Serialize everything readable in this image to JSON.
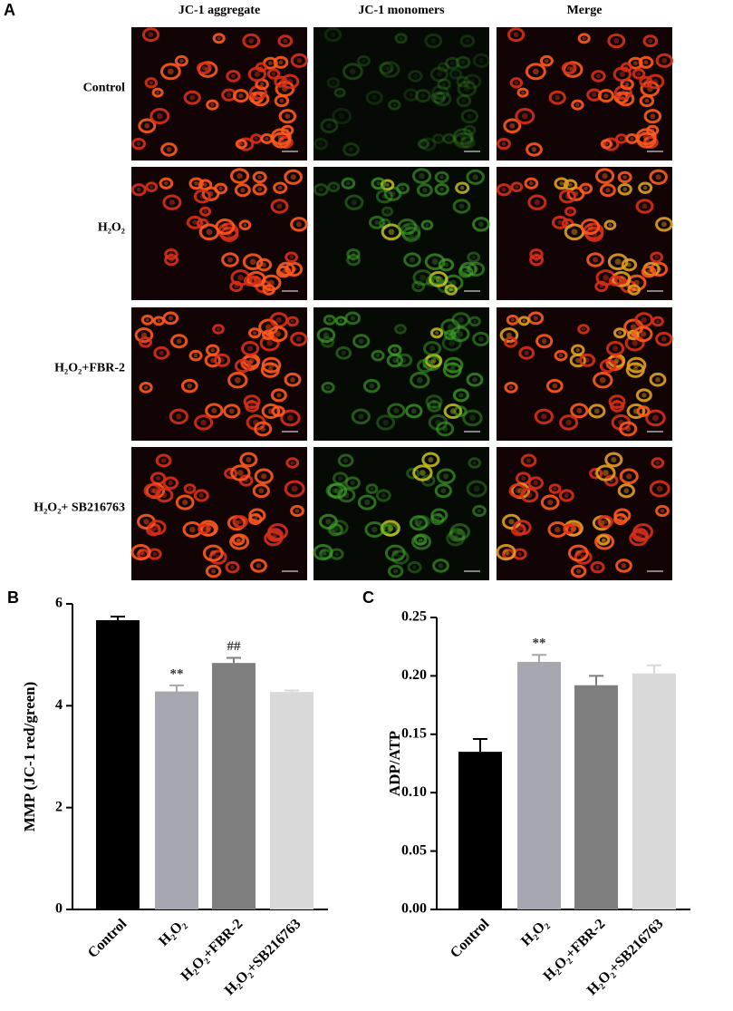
{
  "panel_a": {
    "label": "A",
    "columns": [
      "JC-1 aggregate",
      "JC-1 monomers",
      "Merge"
    ],
    "rows": [
      "Control",
      "H₂O₂",
      "H₂O₂+FBR-2",
      "H₂O₂+ SB216763"
    ]
  },
  "chart_data": [
    {
      "type": "bar",
      "panel_label": "B",
      "ylabel": "MMP (JC-1 red/green)",
      "categories": [
        "Control",
        "H₂O₂",
        "H₂O₂+FBR-2",
        "H₂O₂+SB216763"
      ],
      "values": [
        5.68,
        4.28,
        4.84,
        4.27
      ],
      "errors": [
        0.07,
        0.12,
        0.1,
        0.03
      ],
      "colors": [
        "#000000",
        "#a7a7b0",
        "#7f7f7f",
        "#d9d9d9"
      ],
      "ylim": [
        0,
        6
      ],
      "yticks": [
        0,
        2,
        4,
        6
      ],
      "annotations": [
        {
          "text": "**",
          "category": "H₂O₂"
        },
        {
          "text": "##",
          "category": "H₂O₂+FBR-2"
        }
      ]
    },
    {
      "type": "bar",
      "panel_label": "C",
      "ylabel": "ADP/ATP",
      "categories": [
        "Control",
        "H₂O₂",
        "H₂O₂+FBR-2",
        "H₂O₂+SB216763"
      ],
      "values": [
        0.135,
        0.212,
        0.192,
        0.202
      ],
      "errors": [
        0.011,
        0.006,
        0.008,
        0.007
      ],
      "colors": [
        "#000000",
        "#a7a7b0",
        "#7f7f7f",
        "#d9d9d9"
      ],
      "ylim": [
        0,
        0.25
      ],
      "yticks": [
        {
          "value": 0,
          "label": "0.00"
        },
        0.05,
        {
          "value": 0.1,
          "label": "0.10"
        },
        0.15,
        {
          "value": 0.2,
          "label": "0.20"
        },
        0.25
      ],
      "annotations": [
        {
          "text": "**",
          "category": "H₂O₂"
        }
      ]
    }
  ]
}
